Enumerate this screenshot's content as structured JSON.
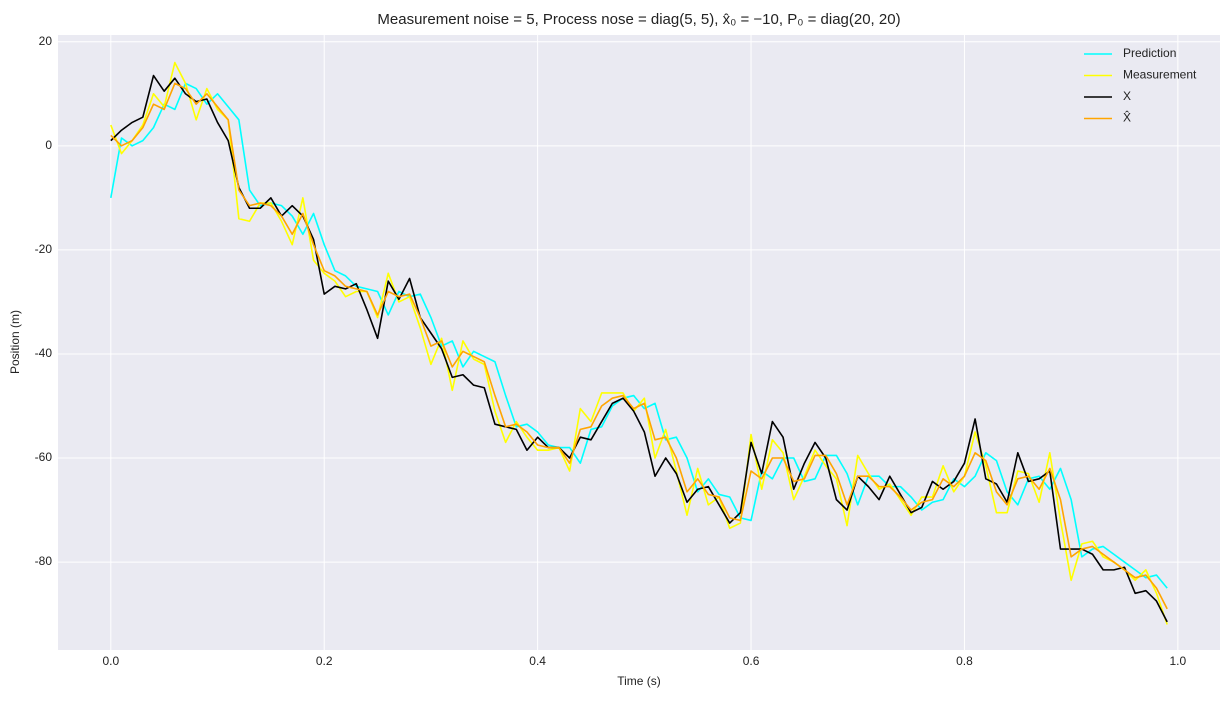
{
  "chart_data": {
    "type": "line",
    "title": "Measurement noise = 5, Process nose = diag(5, 5), x̂₀ = −10, P₀ = diag(20, 20)",
    "x_label": "Time (s)",
    "y_label": "Position (m)",
    "x": [
      0,
      0.01,
      0.02,
      0.03,
      0.04,
      0.05,
      0.06,
      0.07,
      0.08,
      0.09,
      0.1,
      0.11,
      0.12,
      0.13,
      0.14,
      0.15,
      0.16,
      0.17,
      0.18,
      0.19,
      0.2,
      0.21,
      0.22,
      0.23,
      0.24,
      0.25,
      0.26,
      0.27,
      0.28,
      0.29,
      0.3,
      0.31,
      0.32,
      0.33,
      0.34,
      0.35,
      0.36,
      0.37,
      0.38,
      0.39,
      0.4,
      0.41,
      0.42,
      0.43,
      0.44,
      0.45,
      0.46,
      0.47,
      0.48,
      0.49,
      0.5,
      0.51,
      0.52,
      0.53,
      0.54,
      0.55,
      0.56,
      0.57,
      0.58,
      0.59,
      0.6,
      0.61,
      0.62,
      0.63,
      0.64,
      0.65,
      0.66,
      0.67,
      0.68,
      0.69,
      0.7,
      0.71,
      0.72,
      0.73,
      0.74,
      0.75,
      0.76,
      0.77,
      0.78,
      0.79,
      0.8,
      0.81,
      0.82,
      0.83,
      0.84,
      0.85,
      0.86,
      0.87,
      0.88,
      0.89,
      0.9,
      0.91,
      0.92,
      0.93,
      0.94,
      0.95,
      0.96,
      0.97,
      0.98,
      0.99
    ],
    "series": [
      {
        "name": "Prediction",
        "color": "#00ffff",
        "values": [
          -10,
          1.5,
          0,
          1,
          3.5,
          8,
          7,
          12,
          11,
          8,
          10,
          7.5,
          5,
          -8.5,
          -11.5,
          -11,
          -11.5,
          -13.5,
          -17,
          -13,
          -19,
          -24,
          -25,
          -27,
          -27.5,
          -28,
          -32.5,
          -28,
          -29,
          -28.5,
          -33,
          -38.5,
          -37.5,
          -42.5,
          -39.5,
          -40.5,
          -41.5,
          -48,
          -54,
          -53.5,
          -55,
          -57.5,
          -58,
          -58,
          -61,
          -54.5,
          -54,
          -50,
          -48.5,
          -48,
          -50.5,
          -49.5,
          -56.5,
          -56,
          -60,
          -66.5,
          -64,
          -67,
          -67.5,
          -71.5,
          -72,
          -62.5,
          -64,
          -60,
          -60,
          -64.5,
          -64,
          -59.5,
          -59.5,
          -63,
          -69,
          -63.5,
          -63.5,
          -65.5,
          -65.5,
          -67.5,
          -70,
          -68.5,
          -68,
          -64,
          -65.5,
          -63.5,
          -59,
          -60.5,
          -66.5,
          -69,
          -64,
          -63.5,
          -66,
          -62,
          -68,
          -79,
          -77.5,
          -77,
          -78.5,
          -80,
          -81.5,
          -83,
          -82.5,
          -85
        ]
      },
      {
        "name": "Measurement",
        "color": "#ffff00",
        "values": [
          4,
          -1.5,
          1,
          4,
          10,
          7.5,
          16,
          12,
          5,
          11,
          7,
          5,
          -14,
          -14.5,
          -11,
          -11,
          -14.5,
          -19,
          -10,
          -22,
          -24.5,
          -26,
          -29,
          -28,
          -28,
          -33,
          -24.5,
          -30,
          -29,
          -35,
          -42,
          -37,
          -47,
          -37.5,
          -41,
          -42,
          -51,
          -57,
          -53,
          -56,
          -58.5,
          -58.5,
          -58,
          -62.5,
          -50.5,
          -53,
          -47.5,
          -47.5,
          -47.5,
          -51,
          -48.5,
          -60,
          -54.5,
          -62.5,
          -71,
          -62,
          -69,
          -67.5,
          -73.5,
          -72.5,
          -55.5,
          -66,
          -56.5,
          -59,
          -68,
          -63.5,
          -58.5,
          -61.5,
          -64,
          -73,
          -59.5,
          -63,
          -66,
          -65,
          -68,
          -71,
          -67.5,
          -67.5,
          -61.5,
          -66.5,
          -63.5,
          -55,
          -61.5,
          -70.5,
          -70.5,
          -62.5,
          -63,
          -68.5,
          -59,
          -72,
          -83.5,
          -76.5,
          -76,
          -79,
          -80,
          -81.5,
          -83.5,
          -81.5,
          -86,
          -92
        ]
      },
      {
        "name": "X",
        "color": "#000000",
        "values": [
          1,
          3,
          4.5,
          5.5,
          13.5,
          10.5,
          13,
          10,
          8.5,
          9,
          4.5,
          1,
          -8,
          -12,
          -12,
          -10,
          -13.5,
          -11.5,
          -13.5,
          -18,
          -28.5,
          -27,
          -27.5,
          -26.5,
          -31.5,
          -37,
          -26,
          -29.5,
          -25.5,
          -33,
          -36,
          -39,
          -44.5,
          -44,
          -46,
          -46.5,
          -53.5,
          -54,
          -54.5,
          -58.5,
          -56,
          -58,
          -58,
          -60,
          -56,
          -56.5,
          -53,
          -49.5,
          -48.5,
          -51,
          -55,
          -63.5,
          -60,
          -63,
          -68.5,
          -66,
          -65.5,
          -69,
          -72.5,
          -70.5,
          -57,
          -63,
          -53,
          -56,
          -66,
          -61,
          -57,
          -60,
          -68,
          -70,
          -63.5,
          -65.5,
          -68,
          -63.5,
          -67,
          -70.5,
          -69.5,
          -64.5,
          -66,
          -64.5,
          -61,
          -52.5,
          -64,
          -65,
          -68.5,
          -59,
          -64.5,
          -64,
          -62.5,
          -77.5,
          -77.5,
          -77.5,
          -78.5,
          -81.5,
          -81.5,
          -81,
          -86,
          -85.5,
          -87.5,
          -91.5
        ]
      },
      {
        "name": "X̂",
        "color": "#ffa500",
        "values": [
          2,
          0,
          1,
          3.5,
          8,
          7,
          12,
          11,
          8,
          10,
          7.5,
          5,
          -8.5,
          -11.5,
          -11,
          -11.5,
          -13.5,
          -17,
          -13,
          -19,
          -24,
          -25,
          -27,
          -27.5,
          -28,
          -32.5,
          -28,
          -29,
          -28.5,
          -33,
          -38.5,
          -37.5,
          -42.5,
          -39.5,
          -40.5,
          -41.5,
          -48,
          -54,
          -53.5,
          -55,
          -57.5,
          -58,
          -58,
          -61,
          -54.5,
          -54,
          -50,
          -48.5,
          -48,
          -50.5,
          -49.5,
          -56.5,
          -56,
          -60,
          -66.5,
          -64,
          -67,
          -67.5,
          -71.5,
          -72,
          -62.5,
          -64,
          -60,
          -60,
          -64.5,
          -64,
          -59.5,
          -59.5,
          -63,
          -69,
          -63.5,
          -63.5,
          -65.5,
          -65.5,
          -67.5,
          -70,
          -68.5,
          -68,
          -64,
          -65.5,
          -63.5,
          -59,
          -60.5,
          -66.5,
          -69,
          -64,
          -63.5,
          -66,
          -62,
          -68,
          -79,
          -77.5,
          -77,
          -78.5,
          -80,
          -81.5,
          -83,
          -82.5,
          -85,
          -89
        ]
      }
    ],
    "xlim": [
      -0.0495,
      1.0395
    ],
    "xticks": [
      {
        "value": 0,
        "label": "0.0"
      },
      {
        "value": 0.2,
        "label": "0.2"
      },
      {
        "value": 0.4,
        "label": "0.4"
      },
      {
        "value": 0.6,
        "label": "0.6"
      },
      {
        "value": 0.8,
        "label": "0.8"
      },
      {
        "value": 1,
        "label": "1.0"
      }
    ],
    "ylim": [
      -96.9,
      21.3
    ],
    "yticks": [
      -80,
      -60,
      -40,
      -20,
      0,
      20
    ],
    "grid": true,
    "legend": "upper right"
  }
}
